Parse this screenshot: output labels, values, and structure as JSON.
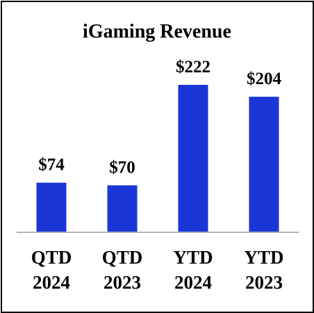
{
  "chart_data": {
    "type": "bar",
    "title": "iGaming Revenue",
    "categories": [
      [
        "QTD",
        "2024"
      ],
      [
        "QTD",
        "2023"
      ],
      [
        "YTD",
        "2024"
      ],
      [
        "YTD",
        "2023"
      ]
    ],
    "values": [
      74,
      70,
      222,
      204
    ],
    "data_labels": [
      "$74",
      "$70",
      "$222",
      "$204"
    ],
    "xlabel": "",
    "ylabel": "",
    "ylim": [
      0,
      240
    ],
    "grid": false,
    "legend": "none",
    "colors": {
      "bar": "#1a36d6",
      "axis": "#b3b3b3",
      "text": "#000000"
    }
  }
}
